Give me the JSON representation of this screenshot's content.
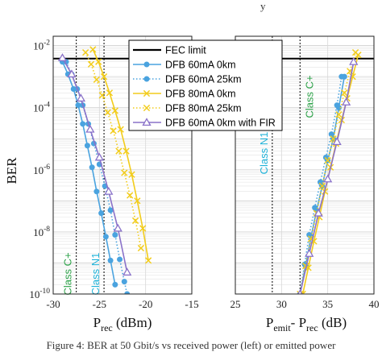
{
  "caption": {
    "top_fragment": "y",
    "bottom": "Figure 4: BER at 50 Gbit/s vs received power (left) or emitted power"
  },
  "colors": {
    "fec": "#000000",
    "dfb60": "#4aa3df",
    "dfb80": "#f2cc1b",
    "fir": "#8a72c9",
    "grid": "#e3e3e3",
    "classCplus": "#2ea24a",
    "classN1": "#1fb2d8",
    "marker_line": "#000000"
  },
  "legend": {
    "items": [
      {
        "label": "FEC limit",
        "series": "fec"
      },
      {
        "label": "DFB 60mA 0km",
        "series": "dfb60_0"
      },
      {
        "label": "DFB 60mA 25km",
        "series": "dfb60_25"
      },
      {
        "label": "DFB 80mA 0km",
        "series": "dfb80_0"
      },
      {
        "label": "DFB 80mA 25km",
        "series": "dfb80_25"
      },
      {
        "label": "DFB 60mA 0km with FIR",
        "series": "dfb60_fir"
      }
    ]
  },
  "chart_data": [
    {
      "type": "line",
      "panel": "left",
      "xlabel_main": "P",
      "xlabel_sub": "rec",
      "xlabel_unit": " (dBm)",
      "ylabel": "BER",
      "xlim": [
        -30,
        -15
      ],
      "ylim_log10": [
        -10,
        -1.7
      ],
      "yscale": "log",
      "grid": true,
      "xticks": [
        "-30",
        "-25",
        "-20",
        "-15"
      ],
      "yticks": [
        {
          "exp": -2,
          "base": "10",
          "sup": "-2"
        },
        {
          "exp": -4,
          "base": "10",
          "sup": "-4"
        },
        {
          "exp": -6,
          "base": "10",
          "sup": "-6"
        },
        {
          "exp": -8,
          "base": "10",
          "sup": "-8"
        },
        {
          "exp": -10,
          "base": "10",
          "sup": "-10"
        }
      ],
      "fec_limit": 0.0038,
      "vlines": [
        {
          "x": -27.5,
          "label": "Class C+",
          "color_key": "classCplus"
        },
        {
          "x": -24.5,
          "label": "Class N1",
          "color_key": "classN1"
        }
      ],
      "series": [
        {
          "key": "dfb60_0",
          "name": "DFB 60mA 0km",
          "style": "solid",
          "marker": "dot",
          "color_key": "dfb60",
          "x": [
            -29.0,
            -28.4,
            -27.8,
            -27.3,
            -26.8,
            -26.3,
            -25.8,
            -25.3,
            -24.8,
            -24.3,
            -23.8,
            -23.3,
            -22.8,
            -22.3
          ],
          "y": [
            0.003,
            0.0012,
            0.0004,
            0.00012,
            3e-05,
            6e-06,
            1.2e-06,
            2e-07,
            4e-08,
            7e-09,
            1.2e-09,
            2e-10,
            0,
            0
          ]
        },
        {
          "key": "dfb60_25",
          "name": "DFB 60mA 25km",
          "style": "dotted",
          "marker": "dot",
          "color_key": "dfb60",
          "x": [
            -28.6,
            -28.0,
            -27.4,
            -26.8,
            -26.2,
            -25.6,
            -25.0,
            -24.4,
            -23.8,
            -23.3,
            -22.8,
            -22.3,
            -22.0
          ],
          "y": [
            0.003,
            0.0012,
            0.0004,
            0.00012,
            3e-05,
            7e-06,
            1.5e-06,
            3e-07,
            5e-08,
            8e-09,
            1.3e-09,
            2.5e-10,
            1e-10
          ]
        },
        {
          "key": "dfb80_0",
          "name": "DFB 80mA 0km",
          "style": "solid",
          "marker": "x",
          "color_key": "dfb80",
          "x": [
            -25.7,
            -25.1,
            -24.5,
            -23.9,
            -23.3,
            -22.7,
            -22.1,
            -21.5,
            -20.9,
            -20.3,
            -19.7
          ],
          "y": [
            0.0075,
            0.003,
            0.001,
            0.0003,
            8e-05,
            2e-05,
            4e-06,
            7e-07,
            1e-07,
            1.3e-08,
            1.2e-09
          ]
        },
        {
          "key": "dfb80_25",
          "name": "DFB 80mA 25km",
          "style": "dotted",
          "marker": "x",
          "color_key": "dfb80",
          "x": [
            -26.5,
            -25.9,
            -25.3,
            -24.7,
            -24.1,
            -23.5,
            -22.9,
            -22.3,
            -21.7,
            -21.1,
            -20.5
          ],
          "y": [
            0.006,
            0.0025,
            0.0008,
            0.00025,
            7e-05,
            1.8e-05,
            4e-06,
            8e-07,
            1.5e-07,
            2.3e-08,
            3e-09
          ]
        },
        {
          "key": "dfb60_fir",
          "name": "DFB 60mA 0km with FIR",
          "style": "solid",
          "marker": "triangle",
          "color_key": "fir",
          "x": [
            -29.0,
            -28.0,
            -27.0,
            -26.0,
            -25.0,
            -24.0,
            -23.0,
            -22.0
          ],
          "y": [
            0.004,
            0.0012,
            0.0002,
            2e-05,
            2.5e-06,
            2e-07,
            1.3e-08,
            5e-10
          ]
        }
      ]
    },
    {
      "type": "line",
      "panel": "right",
      "xlabel_main": "P",
      "xlabel_sub1": "emit",
      "xlabel_mid": "- P",
      "xlabel_sub2": "rec",
      "xlabel_unit": " (dB)",
      "xlim": [
        25,
        40
      ],
      "ylim_log10": [
        -10,
        -1.7
      ],
      "yscale": "log",
      "grid": true,
      "xticks": [
        "25",
        "30",
        "35",
        "40"
      ],
      "fec_limit": 0.0038,
      "vlines": [
        {
          "x": 29,
          "label": "Class N1",
          "color_key": "classN1"
        },
        {
          "x": 32,
          "label": "Class C+",
          "color_key": "classCplus"
        }
      ],
      "series": [
        {
          "key": "dfb60_0",
          "color_key": "dfb60",
          "style": "solid",
          "marker": "dot",
          "x": [
            32.0,
            32.6,
            33.2,
            33.8,
            34.4,
            35.0,
            35.6,
            36.2,
            36.8
          ],
          "y": [
            1e-10,
            8e-10,
            7e-09,
            5e-08,
            3e-07,
            2e-06,
            1e-05,
            0.0001,
            0.001
          ]
        },
        {
          "key": "dfb60_25",
          "color_key": "dfb60",
          "style": "dotted",
          "marker": "dot",
          "x": [
            32.0,
            32.5,
            33.0,
            33.6,
            34.2,
            34.8,
            35.4,
            36.0,
            36.5
          ],
          "y": [
            1e-10,
            9e-10,
            8e-09,
            6e-08,
            4e-07,
            2.5e-06,
            1.4e-05,
            0.00012,
            0.001
          ]
        },
        {
          "key": "dfb80_0",
          "color_key": "dfb80",
          "style": "solid",
          "marker": "x",
          "x": [
            32.3,
            32.9,
            33.5,
            34.1,
            34.7,
            35.3,
            35.9,
            36.5,
            37.1,
            37.7,
            38.3
          ],
          "y": [
            1e-10,
            7e-10,
            5e-09,
            3e-08,
            2e-07,
            1.2e-06,
            7e-06,
            4e-05,
            0.0002,
            0.001,
            0.005
          ]
        },
        {
          "key": "dfb80_25",
          "color_key": "dfb80",
          "style": "dotted",
          "marker": "x",
          "x": [
            32.0,
            32.6,
            33.2,
            33.8,
            34.4,
            35.0,
            35.6,
            36.2,
            36.8,
            37.4,
            38.0
          ],
          "y": [
            1e-10,
            8e-10,
            6e-09,
            4e-08,
            3e-07,
            2e-06,
            1e-05,
            6e-05,
            0.0003,
            0.0015,
            0.006
          ]
        },
        {
          "key": "dfb60_fir",
          "color_key": "fir",
          "style": "solid",
          "marker": "triangle",
          "x": [
            32.0,
            33.0,
            34.0,
            35.0,
            36.0,
            37.0,
            37.8
          ],
          "y": [
            1e-10,
            2e-09,
            4e-08,
            5e-07,
            8e-06,
            0.00015,
            0.003
          ]
        }
      ]
    }
  ]
}
